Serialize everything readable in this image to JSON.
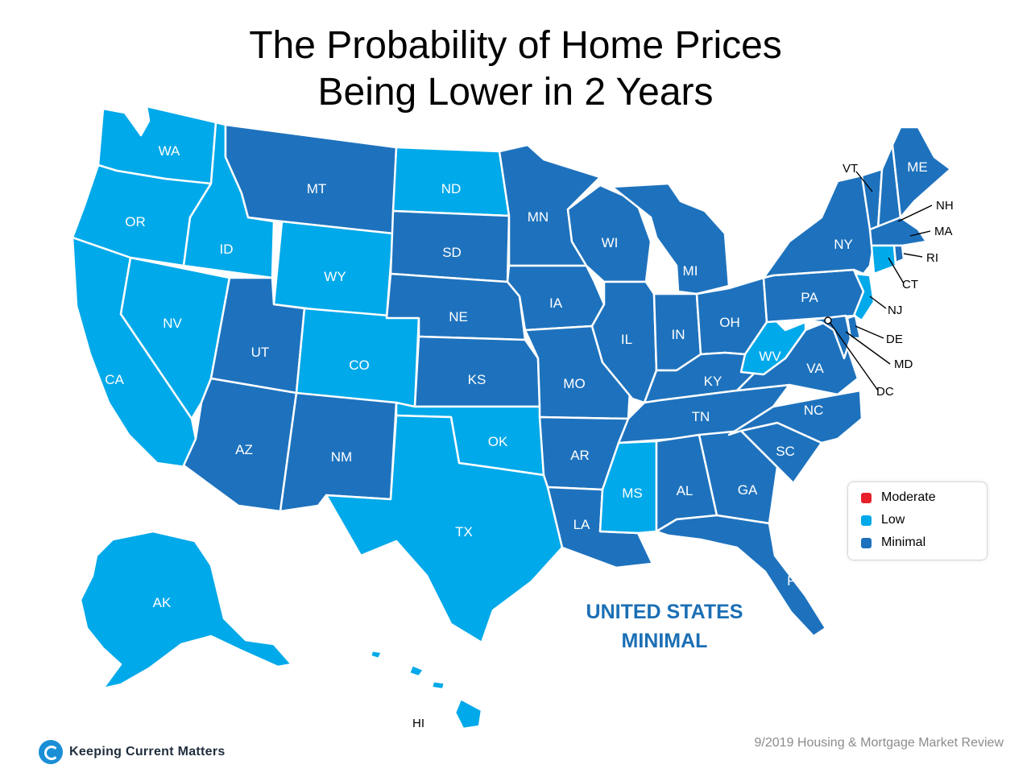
{
  "title": {
    "line1": "The Probability of Home Prices",
    "line2": "Being Lower in 2 Years"
  },
  "colors": {
    "Moderate": "#e8202a",
    "Low": "#00a9e9",
    "Minimal": "#1e72bd"
  },
  "legend": {
    "items": [
      {
        "label": "Moderate",
        "color": "#e8202a"
      },
      {
        "label": "Low",
        "color": "#00a9e9"
      },
      {
        "label": "Minimal",
        "color": "#1e72bd"
      }
    ]
  },
  "states": {
    "WA": "Low",
    "OR": "Low",
    "CA": "Low",
    "ID": "Low",
    "NV": "Low",
    "MT": "Minimal",
    "WY": "Low",
    "UT": "Minimal",
    "AZ": "Minimal",
    "CO": "Low",
    "NM": "Minimal",
    "ND": "Low",
    "SD": "Minimal",
    "NE": "Minimal",
    "KS": "Minimal",
    "OK": "Low",
    "TX": "Low",
    "MN": "Minimal",
    "IA": "Minimal",
    "MO": "Minimal",
    "AR": "Minimal",
    "LA": "Minimal",
    "WI": "Minimal",
    "IL": "Minimal",
    "MI": "Minimal",
    "IN": "Minimal",
    "OH": "Minimal",
    "KY": "Minimal",
    "TN": "Minimal",
    "MS": "Low",
    "AL": "Minimal",
    "GA": "Minimal",
    "FL": "Minimal",
    "SC": "Minimal",
    "NC": "Minimal",
    "VA": "Minimal",
    "WV": "Low",
    "PA": "Minimal",
    "NY": "Minimal",
    "VT": "Minimal",
    "NH": "Minimal",
    "ME": "Minimal",
    "MA": "Minimal",
    "RI": "Minimal",
    "CT": "Low",
    "NJ": "Low",
    "DE": "Minimal",
    "MD": "Minimal",
    "DC": "Minimal",
    "AK": "Low",
    "HI": "Low"
  },
  "us_rating": {
    "line1": "UNITED STATES",
    "line2": "MINIMAL"
  },
  "brand": "Keeping Current Matters",
  "source": "9/2019 Housing & Mortgage Market Review"
}
